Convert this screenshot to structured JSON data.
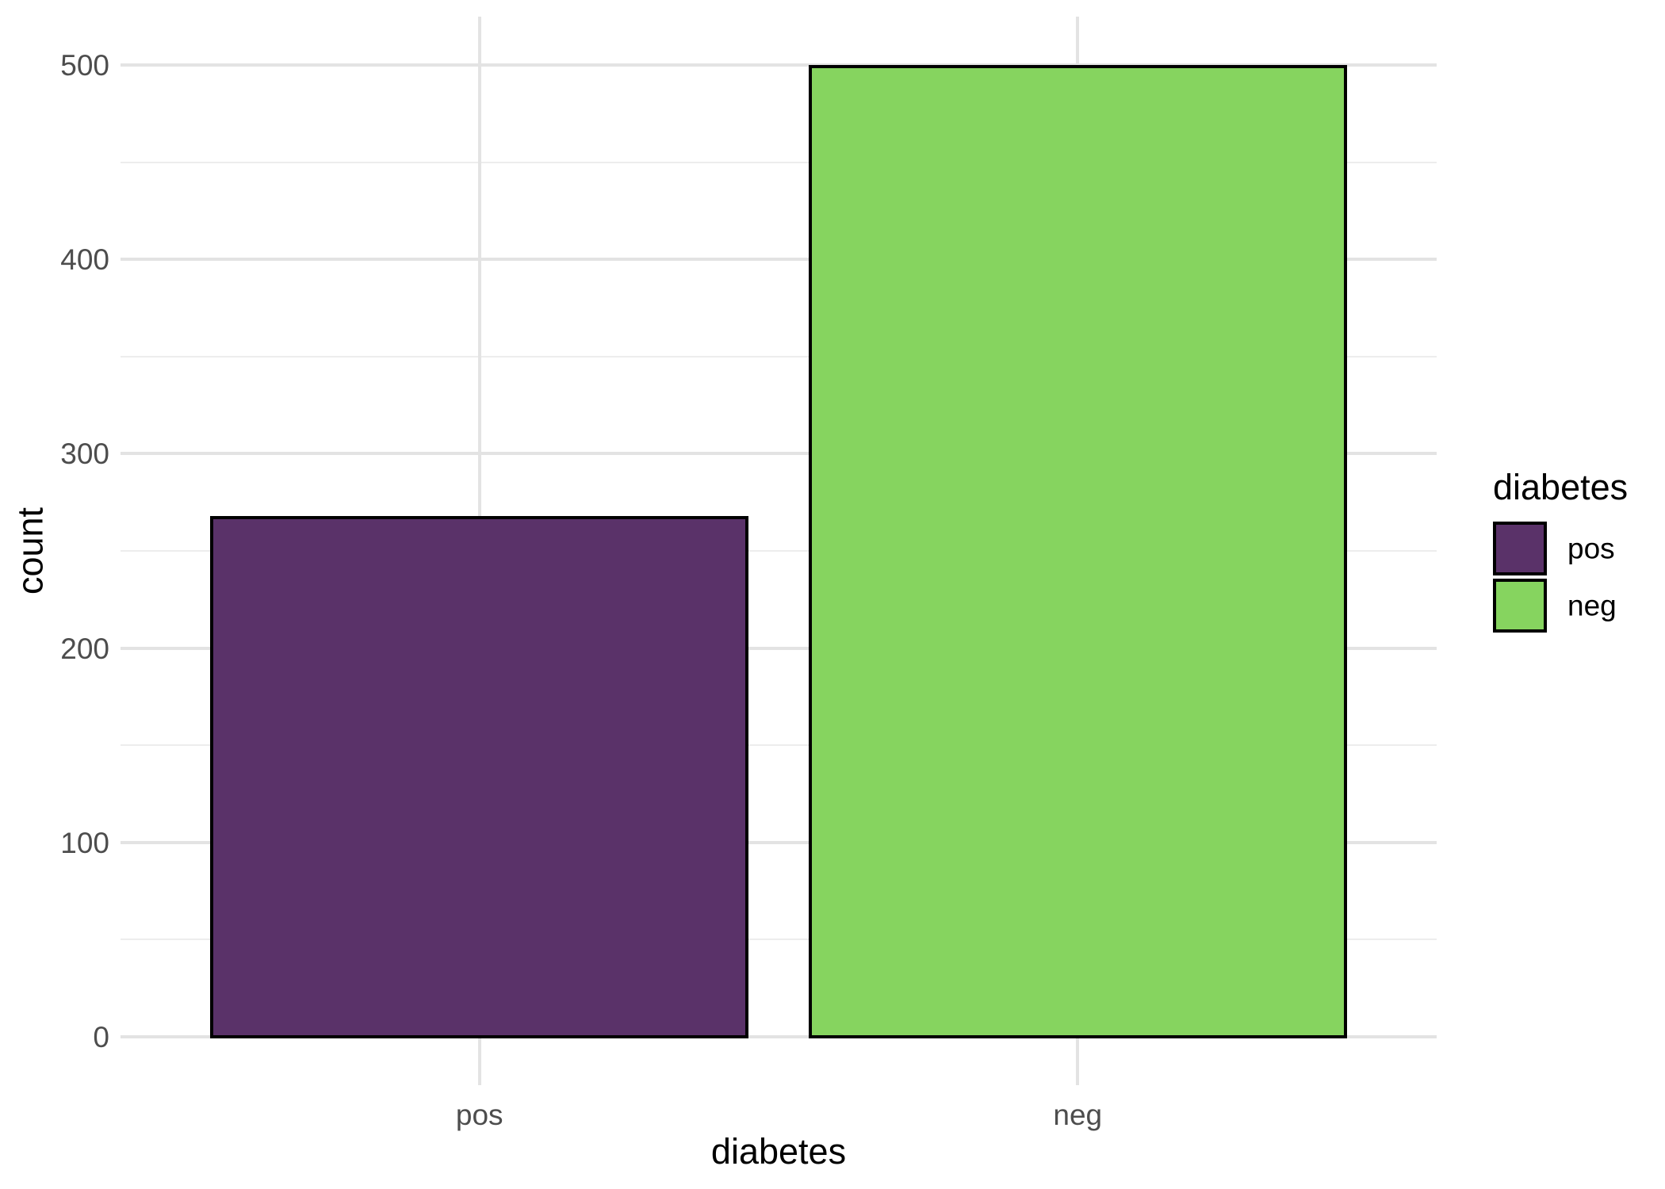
{
  "figure": {
    "background": "#FFFFFF"
  },
  "style": {
    "grid_major_color": "#E3E3E3",
    "grid_minor_color": "#EDEDED",
    "axis_text_color": "#4D4D4D",
    "title_text_color": "#000000",
    "bar_outline_color": "#000000"
  },
  "chart_data": {
    "type": "bar",
    "title": "",
    "xlabel": "diabetes",
    "ylabel": "count",
    "categories": [
      "pos",
      "neg"
    ],
    "values": [
      268,
      500
    ],
    "colors": [
      "#5A3269",
      "#86D45F"
    ],
    "ylim": [
      0,
      500
    ],
    "y_major_ticks": [
      0,
      100,
      200,
      300,
      400,
      500
    ],
    "y_minor_ticks": [
      50,
      150,
      250,
      350,
      450
    ],
    "grid": true,
    "legend": {
      "title": "diabetes",
      "position": "right",
      "labels": [
        "pos",
        "neg"
      ]
    }
  }
}
